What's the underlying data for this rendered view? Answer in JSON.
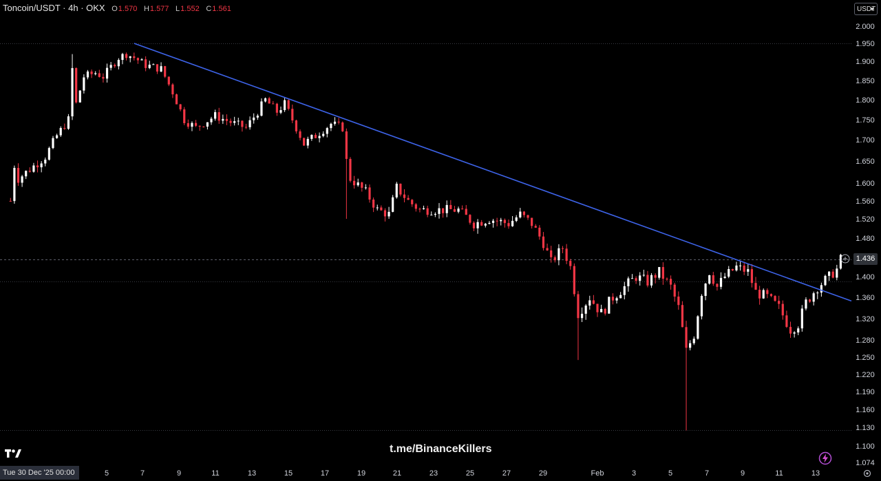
{
  "header": {
    "symbol": "Toncoin/USDT · 4h · OKX",
    "open_label": "O",
    "open_value": "1.570",
    "high_label": "H",
    "high_value": "1.577",
    "low_label": "L",
    "low_value": "1.552",
    "close_label": "C",
    "close_value": "1.561"
  },
  "currency_button": "USDT",
  "watermark": "t.me/BinanceKillers",
  "crosshair_date": "Tue 30 Dec '25   00:00",
  "current_price_label": "1.436",
  "colors": {
    "up": "#ffffff",
    "down": "#f23645",
    "trendline": "#3d63e8",
    "background": "#000000"
  },
  "icons": {
    "logo": "tradingview-logo-icon",
    "alert": "add-alert-icon",
    "bolt": "lightning-icon",
    "settings": "settings-icon"
  },
  "chart_data": {
    "type": "candlestick",
    "title": "",
    "y_ticks": [
      "2.000",
      "1.950",
      "1.900",
      "1.850",
      "1.800",
      "1.750",
      "1.700",
      "1.650",
      "1.600",
      "1.560",
      "1.520",
      "1.480",
      "1.440",
      "1.400",
      "1.360",
      "1.320",
      "1.280",
      "1.250",
      "1.220",
      "1.190",
      "1.160",
      "1.130",
      "1.100",
      "1.074"
    ],
    "x_ticks": [
      "5",
      "7",
      "9",
      "11",
      "13",
      "15",
      "17",
      "19",
      "21",
      "23",
      "25",
      "27",
      "29",
      "Feb",
      "3",
      "5",
      "7",
      "9",
      "11",
      "13"
    ],
    "horizontal_levels": [
      1.95,
      1.436,
      1.391,
      1.125
    ],
    "trendline": {
      "start": {
        "bar": 0.5,
        "price": 1.95
      },
      "end": {
        "bar": 182.5,
        "price": 1.363
      }
    },
    "approx_close_path": [
      {
        "bar": -31.5,
        "price": 1.56
      },
      {
        "bar": -30.5,
        "price": 1.64
      },
      {
        "bar": -29.5,
        "price": 1.61
      },
      {
        "bar": -22.5,
        "price": 1.66
      },
      {
        "bar": -19.5,
        "price": 1.71
      },
      {
        "bar": -16.5,
        "price": 1.75
      },
      {
        "bar": -15.5,
        "price": 1.88
      },
      {
        "bar": -14.5,
        "price": 1.79
      },
      {
        "bar": -12.5,
        "price": 1.86
      },
      {
        "bar": -9.5,
        "price": 1.87
      },
      {
        "bar": -7.5,
        "price": 1.86
      },
      {
        "bar": -3.5,
        "price": 1.91
      },
      {
        "bar": -1.5,
        "price": 1.92
      },
      {
        "bar": 0.5,
        "price": 1.91
      },
      {
        "bar": 3.5,
        "price": 1.89
      },
      {
        "bar": 7.5,
        "price": 1.88
      },
      {
        "bar": 10.5,
        "price": 1.82
      },
      {
        "bar": 13.5,
        "price": 1.75
      },
      {
        "bar": 16.5,
        "price": 1.73
      },
      {
        "bar": 21.5,
        "price": 1.76
      },
      {
        "bar": 26.5,
        "price": 1.74
      },
      {
        "bar": 29.5,
        "price": 1.73
      },
      {
        "bar": 32.5,
        "price": 1.77
      },
      {
        "bar": 34.5,
        "price": 1.8
      },
      {
        "bar": 37.5,
        "price": 1.77
      },
      {
        "bar": 39.5,
        "price": 1.79
      },
      {
        "bar": 42.5,
        "price": 1.73
      },
      {
        "bar": 44.5,
        "price": 1.69
      },
      {
        "bar": 47.5,
        "price": 1.71
      },
      {
        "bar": 51.5,
        "price": 1.74
      },
      {
        "bar": 54.5,
        "price": 1.73
      },
      {
        "bar": 55.5,
        "price": 1.65
      },
      {
        "bar": 56.5,
        "price": 1.61
      },
      {
        "bar": 60.5,
        "price": 1.58
      },
      {
        "bar": 63.5,
        "price": 1.54
      },
      {
        "bar": 66.5,
        "price": 1.53
      },
      {
        "bar": 68.5,
        "price": 1.59
      },
      {
        "bar": 71.5,
        "price": 1.56
      },
      {
        "bar": 74.5,
        "price": 1.54
      },
      {
        "bar": 79.5,
        "price": 1.54
      },
      {
        "bar": 84.5,
        "price": 1.54
      },
      {
        "bar": 88.5,
        "price": 1.51
      },
      {
        "bar": 92.5,
        "price": 1.52
      },
      {
        "bar": 97.5,
        "price": 1.51
      },
      {
        "bar": 100.5,
        "price": 1.53
      },
      {
        "bar": 103.5,
        "price": 1.51
      },
      {
        "bar": 106.5,
        "price": 1.47
      },
      {
        "bar": 108.5,
        "price": 1.43
      },
      {
        "bar": 111.5,
        "price": 1.46
      },
      {
        "bar": 113.5,
        "price": 1.42
      },
      {
        "bar": 115.5,
        "price": 1.33
      },
      {
        "bar": 118.5,
        "price": 1.36
      },
      {
        "bar": 121.5,
        "price": 1.33
      },
      {
        "bar": 124.5,
        "price": 1.36
      },
      {
        "bar": 127.5,
        "price": 1.38
      },
      {
        "bar": 130.5,
        "price": 1.4
      },
      {
        "bar": 133.5,
        "price": 1.39
      },
      {
        "bar": 136.5,
        "price": 1.41
      },
      {
        "bar": 139.5,
        "price": 1.38
      },
      {
        "bar": 141.5,
        "price": 1.34
      },
      {
        "bar": 143.5,
        "price": 1.26
      },
      {
        "bar": 145.5,
        "price": 1.29
      },
      {
        "bar": 147.5,
        "price": 1.37
      },
      {
        "bar": 149.5,
        "price": 1.41
      },
      {
        "bar": 151.5,
        "price": 1.38
      },
      {
        "bar": 153.5,
        "price": 1.4
      },
      {
        "bar": 156.5,
        "price": 1.42
      },
      {
        "bar": 159.5,
        "price": 1.41
      },
      {
        "bar": 161.5,
        "price": 1.37
      },
      {
        "bar": 164.5,
        "price": 1.36
      },
      {
        "bar": 167.5,
        "price": 1.34
      },
      {
        "bar": 170.5,
        "price": 1.3
      },
      {
        "bar": 172.5,
        "price": 1.31
      },
      {
        "bar": 174.5,
        "price": 1.35
      },
      {
        "bar": 177.5,
        "price": 1.38
      },
      {
        "bar": 180.5,
        "price": 1.4
      },
      {
        "bar": 182.5,
        "price": 1.415
      },
      {
        "bar": 183.5,
        "price": 1.436
      }
    ],
    "spikes": [
      {
        "bar": -15.5,
        "high": 1.92
      },
      {
        "bar": 55.5,
        "low": 1.52
      },
      {
        "bar": 115.5,
        "low": 1.245
      },
      {
        "bar": 143.5,
        "low": 1.125
      }
    ]
  }
}
